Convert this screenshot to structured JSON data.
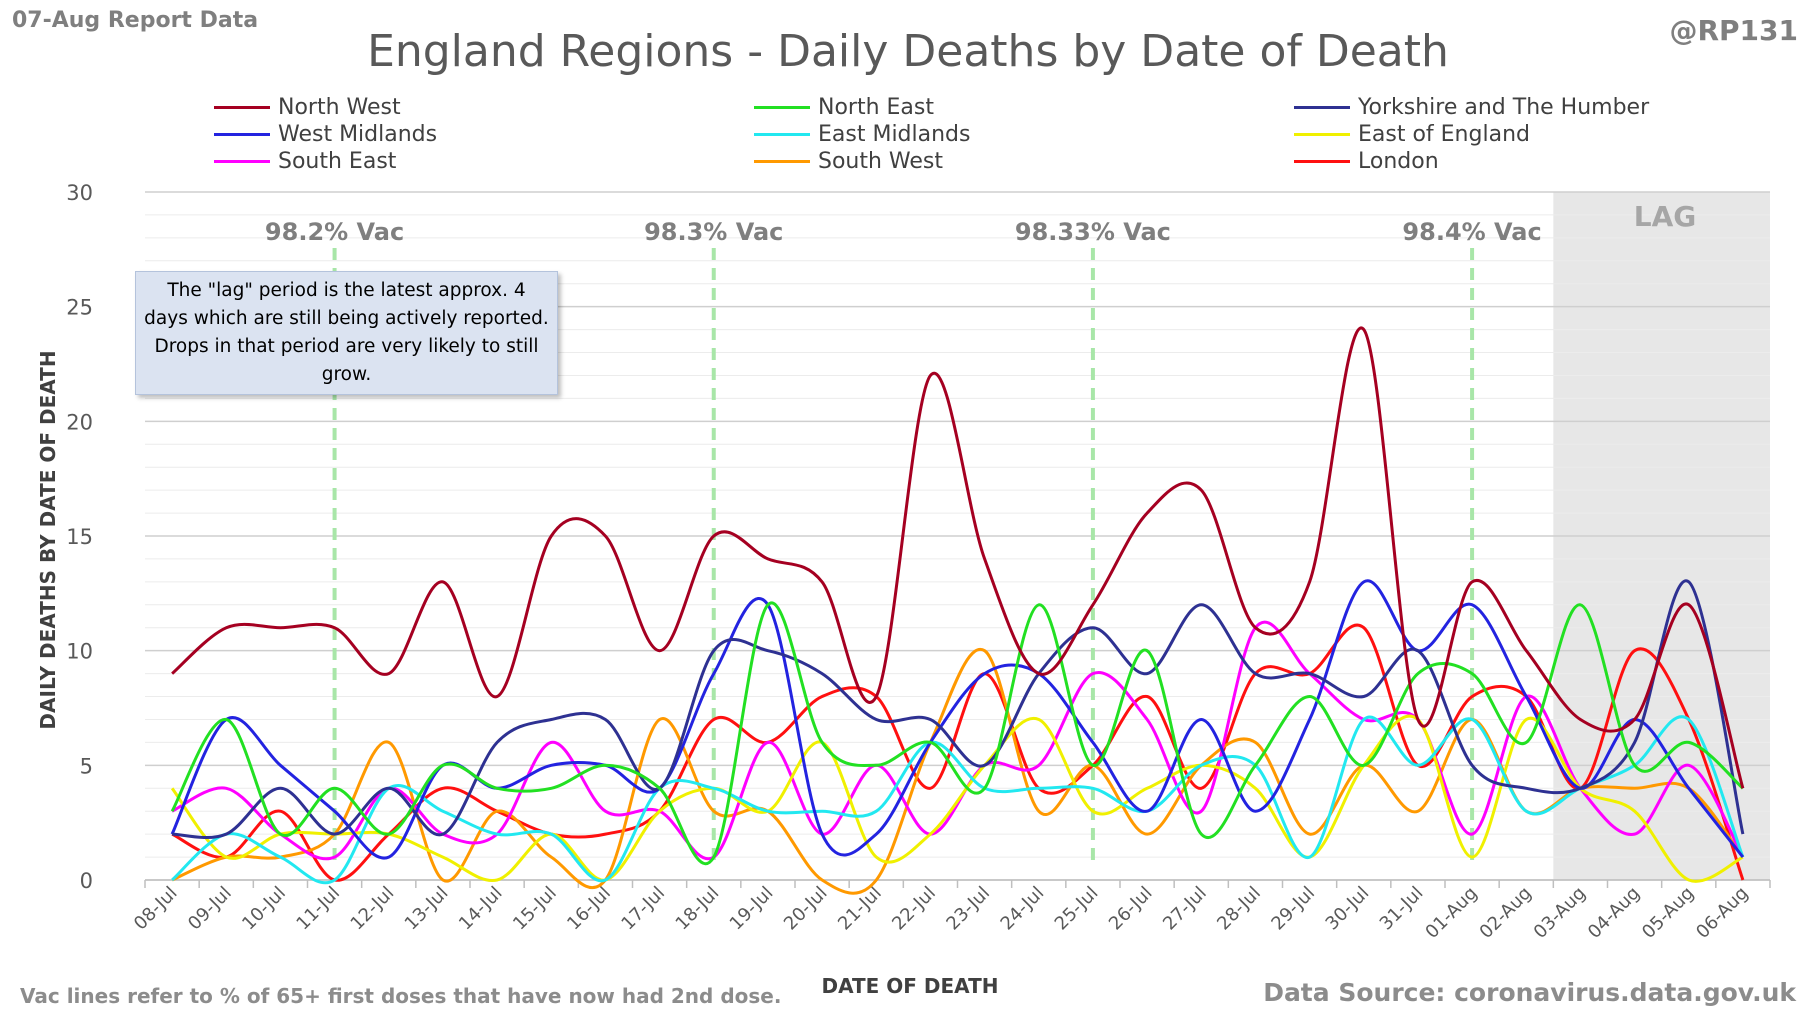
{
  "header": {
    "report_date": "07-Aug Report Data",
    "handle": "@RP131"
  },
  "footer": {
    "note": "Vac lines refer to % of 65+ first doses that have now had 2nd dose.",
    "source": "Data Source: coronavirus.data.gov.uk"
  },
  "annotation": {
    "lag_note": "The \"lag\" period is the latest approx. 4 days which are still being actively reported. Drops in that period are very likely to still grow.",
    "lag_label": "LAG"
  },
  "chart_data": {
    "type": "line",
    "title": "England Regions - Daily Deaths by Date of Death",
    "xlabel": "DATE OF DEATH",
    "ylabel": "DAILY DEATHS BY DATE OF DEATH",
    "ylim": [
      0,
      30
    ],
    "yticks": [
      0,
      5,
      10,
      15,
      20,
      25,
      30
    ],
    "grid": true,
    "smoothed": true,
    "legend_position": "top",
    "categories": [
      "08-Jul",
      "09-Jul",
      "10-Jul",
      "11-Jul",
      "12-Jul",
      "13-Jul",
      "14-Jul",
      "15-Jul",
      "16-Jul",
      "17-Jul",
      "18-Jul",
      "19-Jul",
      "20-Jul",
      "21-Jul",
      "22-Jul",
      "23-Jul",
      "24-Jul",
      "25-Jul",
      "26-Jul",
      "27-Jul",
      "28-Jul",
      "29-Jul",
      "30-Jul",
      "31-Jul",
      "01-Aug",
      "02-Aug",
      "03-Aug",
      "04-Aug",
      "05-Aug",
      "06-Aug"
    ],
    "lag_period": {
      "from": "03-Aug",
      "to": "06-Aug",
      "color": "#e7e7e7"
    },
    "vaccination_markers": [
      {
        "at": "11-Jul",
        "label": "98.2% Vac"
      },
      {
        "at": "18-Jul",
        "label": "98.3% Vac"
      },
      {
        "at": "25-Jul",
        "label": "98.33% Vac"
      },
      {
        "at": "01-Aug",
        "label": "98.4% Vac"
      }
    ],
    "series": [
      {
        "name": "North West",
        "color": "#a50021",
        "values": [
          9,
          11,
          11,
          11,
          9,
          13,
          8,
          15,
          15,
          10,
          15,
          14,
          13,
          8,
          22,
          14,
          9,
          12,
          16,
          17,
          11,
          13,
          24,
          7,
          13,
          10,
          7,
          7,
          12,
          4
        ]
      },
      {
        "name": "North East",
        "color": "#22e022",
        "values": [
          3,
          7,
          2,
          4,
          2,
          5,
          4,
          4,
          5,
          4,
          1,
          12,
          6,
          5,
          6,
          4,
          12,
          5,
          10,
          2,
          5,
          8,
          5,
          9,
          9,
          6,
          12,
          5,
          6,
          4
        ]
      },
      {
        "name": "Yorkshire and The Humber",
        "color": "#2e3192",
        "values": [
          2,
          2,
          4,
          2,
          4,
          2,
          6,
          7,
          7,
          4,
          10,
          10,
          9,
          7,
          7,
          5,
          9,
          11,
          9,
          12,
          9,
          9,
          8,
          10,
          5,
          4,
          4,
          6,
          13,
          2
        ]
      },
      {
        "name": "West Midlands",
        "color": "#2323e0",
        "values": [
          2,
          7,
          5,
          3,
          1,
          5,
          4,
          5,
          5,
          4,
          9,
          12,
          2,
          2,
          6,
          9,
          9,
          6,
          3,
          7,
          3,
          7,
          13,
          10,
          12,
          8,
          4,
          7,
          4,
          1
        ]
      },
      {
        "name": "East Midlands",
        "color": "#22e8f0",
        "values": [
          0,
          2,
          1,
          0,
          4,
          3,
          2,
          2,
          0,
          4,
          4,
          3,
          3,
          3,
          6,
          4,
          4,
          4,
          3,
          5,
          5,
          1,
          7,
          5,
          7,
          3,
          4,
          5,
          7,
          1
        ]
      },
      {
        "name": "East of England",
        "color": "#f0f000",
        "values": [
          4,
          1,
          2,
          2,
          2,
          1,
          0,
          2,
          0,
          3,
          4,
          3,
          6,
          1,
          2,
          5,
          7,
          3,
          4,
          5,
          4,
          1,
          5,
          7,
          1,
          7,
          4,
          3,
          0,
          1
        ]
      },
      {
        "name": "South East",
        "color": "#ff00ff",
        "values": [
          3,
          4,
          2,
          1,
          4,
          2,
          2,
          6,
          3,
          3,
          1,
          6,
          2,
          5,
          2,
          5,
          5,
          9,
          7,
          3,
          11,
          9,
          7,
          7,
          2,
          8,
          4,
          2,
          5,
          1
        ]
      },
      {
        "name": "South West",
        "color": "#ff9900",
        "values": [
          0,
          1,
          1,
          2,
          6,
          0,
          3,
          1,
          0,
          7,
          3,
          3,
          0,
          0,
          6,
          10,
          3,
          5,
          2,
          5,
          6,
          2,
          5,
          3,
          7,
          3,
          4,
          4,
          4,
          1
        ]
      },
      {
        "name": "London",
        "color": "#ff1010",
        "values": [
          2,
          1,
          3,
          0,
          2,
          4,
          3,
          2,
          2,
          3,
          7,
          6,
          8,
          8,
          4,
          9,
          4,
          5,
          8,
          4,
          9,
          9,
          11,
          5,
          8,
          8,
          4,
          10,
          7,
          0
        ]
      }
    ]
  }
}
